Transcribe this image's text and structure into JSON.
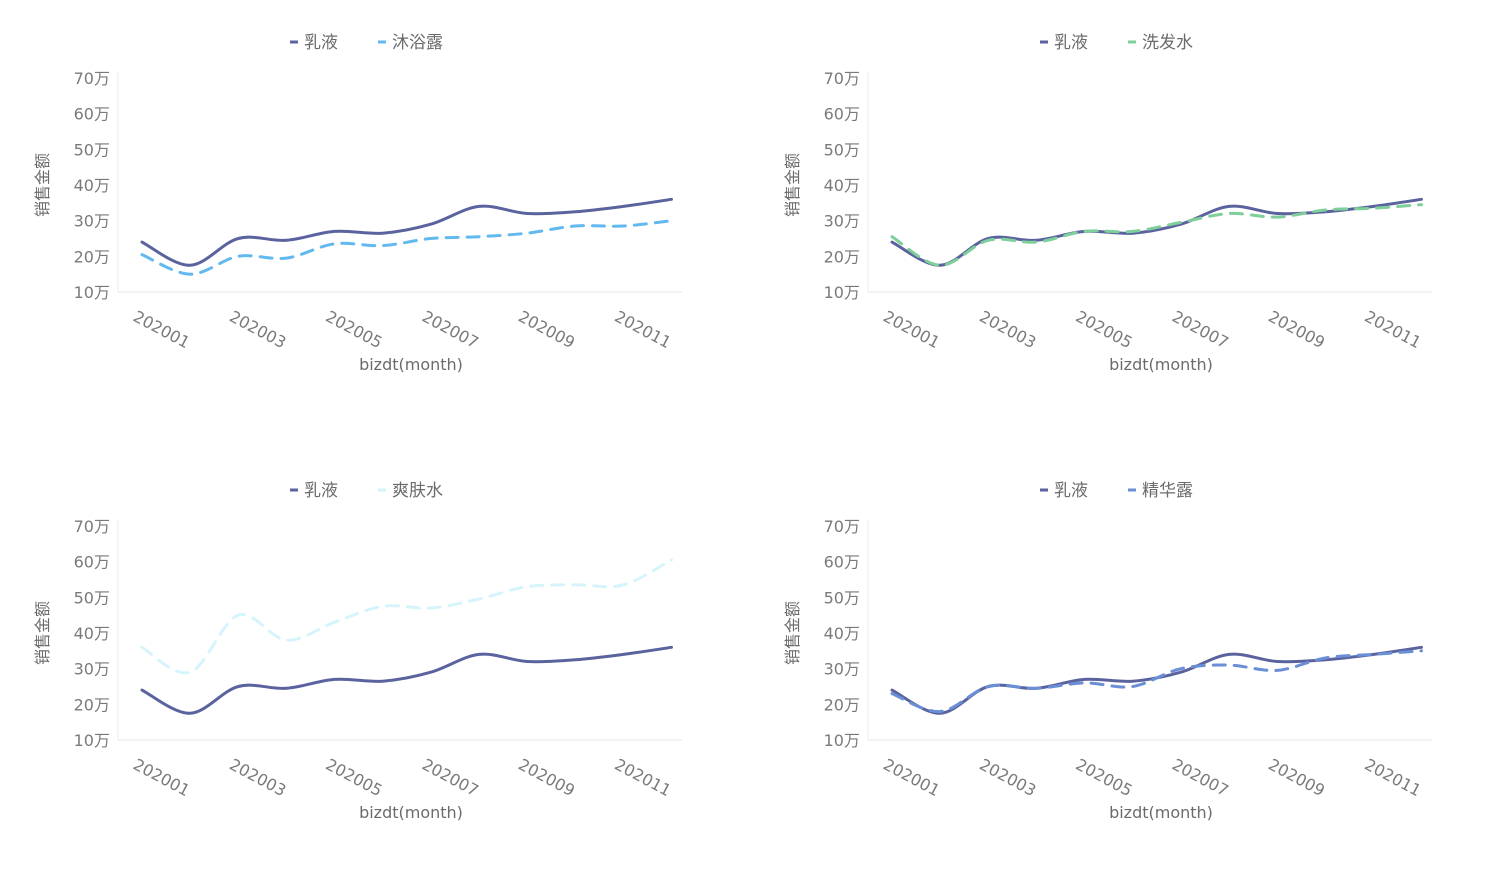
{
  "chart_data": [
    {
      "type": "line",
      "title": "",
      "xlabel": "bizdt(month)",
      "ylabel": "销售金额",
      "x": [
        "202001",
        "202002",
        "202003",
        "202004",
        "202005",
        "202006",
        "202007",
        "202008",
        "202009",
        "202010",
        "202011",
        "202012"
      ],
      "x_tick_labels": [
        "202001",
        "202003",
        "202005",
        "202007",
        "202009",
        "202011"
      ],
      "y_tick_labels": [
        "70万",
        "60万",
        "50万",
        "40万",
        "30万",
        "20万",
        "10万"
      ],
      "ylim": [
        10,
        70
      ],
      "legend_position": "top-center",
      "series": [
        {
          "name": "乳液",
          "color": "#5b639f",
          "dash": "solid",
          "values": [
            24,
            17.5,
            25,
            24.5,
            27,
            26.5,
            29,
            34,
            32,
            32.5,
            34,
            36
          ]
        },
        {
          "name": "沐浴露",
          "color": "#62b9ef",
          "dash": "dashed",
          "values": [
            20.5,
            15,
            20,
            19.5,
            23.5,
            23,
            25,
            25.5,
            26.5,
            28.5,
            28.5,
            30
          ]
        }
      ]
    },
    {
      "type": "line",
      "title": "",
      "xlabel": "bizdt(month)",
      "ylabel": "销售金额",
      "x": [
        "202001",
        "202002",
        "202003",
        "202004",
        "202005",
        "202006",
        "202007",
        "202008",
        "202009",
        "202010",
        "202011",
        "202012"
      ],
      "x_tick_labels": [
        "202001",
        "202003",
        "202005",
        "202007",
        "202009",
        "202011"
      ],
      "y_tick_labels": [
        "70万",
        "60万",
        "50万",
        "40万",
        "30万",
        "20万",
        "10万"
      ],
      "ylim": [
        10,
        70
      ],
      "legend_position": "top-center",
      "series": [
        {
          "name": "乳液",
          "color": "#5b639f",
          "dash": "solid",
          "values": [
            24,
            17.5,
            25,
            24.5,
            27,
            26.5,
            29,
            34,
            32,
            32.5,
            34,
            36
          ]
        },
        {
          "name": "洗发水",
          "color": "#7fcf9a",
          "dash": "dashed",
          "values": [
            25.5,
            17.5,
            24.5,
            24,
            27,
            27,
            29.5,
            32,
            31,
            33,
            33.5,
            34.5
          ]
        }
      ]
    },
    {
      "type": "line",
      "title": "",
      "xlabel": "bizdt(month)",
      "ylabel": "销售金额",
      "x": [
        "202001",
        "202002",
        "202003",
        "202004",
        "202005",
        "202006",
        "202007",
        "202008",
        "202009",
        "202010",
        "202011",
        "202012"
      ],
      "x_tick_labels": [
        "202001",
        "202003",
        "202005",
        "202007",
        "202009",
        "202011"
      ],
      "y_tick_labels": [
        "70万",
        "60万",
        "50万",
        "40万",
        "30万",
        "20万",
        "10万"
      ],
      "ylim": [
        10,
        70
      ],
      "legend_position": "top-center",
      "series": [
        {
          "name": "乳液",
          "color": "#5b639f",
          "dash": "solid",
          "values": [
            24,
            17.5,
            25,
            24.5,
            27,
            26.5,
            29,
            34,
            32,
            32.5,
            34,
            36
          ]
        },
        {
          "name": "爽肤水",
          "color": "#d6f4fb",
          "dash": "dashed",
          "values": [
            36,
            29,
            45,
            38,
            43,
            47.5,
            47,
            49.5,
            53,
            53.5,
            53.5,
            60.5
          ]
        }
      ]
    },
    {
      "type": "line",
      "title": "",
      "xlabel": "bizdt(month)",
      "ylabel": "销售金额",
      "x": [
        "202001",
        "202002",
        "202003",
        "202004",
        "202005",
        "202006",
        "202007",
        "202008",
        "202009",
        "202010",
        "202011",
        "202012"
      ],
      "x_tick_labels": [
        "202001",
        "202003",
        "202005",
        "202007",
        "202009",
        "202011"
      ],
      "y_tick_labels": [
        "70万",
        "60万",
        "50万",
        "40万",
        "30万",
        "20万",
        "10万"
      ],
      "ylim": [
        10,
        70
      ],
      "legend_position": "top-center",
      "series": [
        {
          "name": "乳液",
          "color": "#5b639f",
          "dash": "solid",
          "values": [
            24,
            17.5,
            25,
            24.5,
            27,
            26.5,
            29,
            34,
            32,
            32.5,
            34,
            36
          ]
        },
        {
          "name": "精华露",
          "color": "#6a8fd6",
          "dash": "dashed",
          "values": [
            23,
            18,
            25,
            24.5,
            26,
            25,
            30,
            31,
            29.5,
            33,
            34,
            35
          ]
        }
      ]
    }
  ]
}
